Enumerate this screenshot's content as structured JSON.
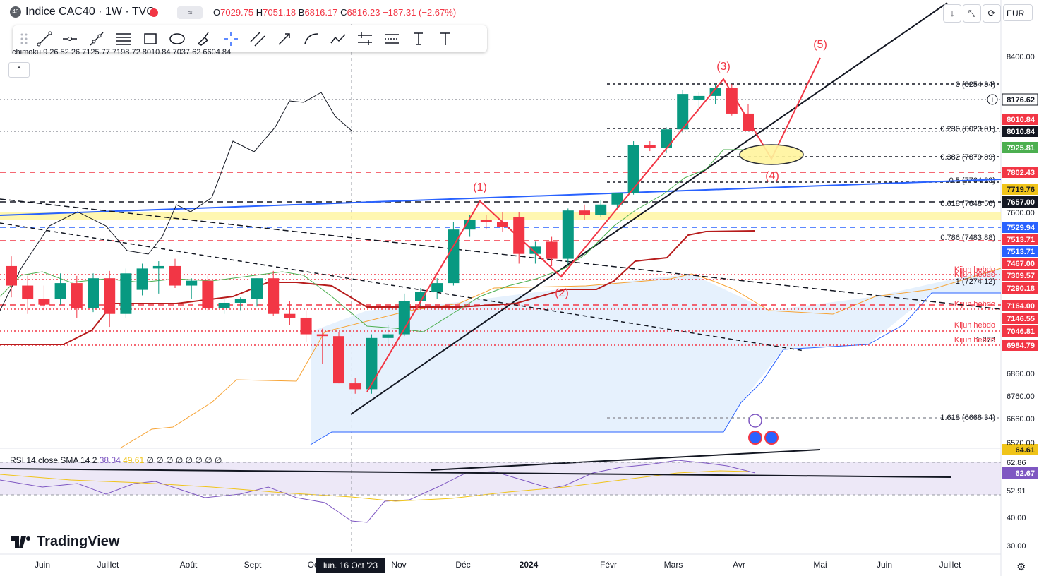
{
  "header": {
    "badge": "40",
    "symbol_title": "Indice CAC40 · 1W · TVC",
    "compare_icon": "≈",
    "ohlc": {
      "open_label": "O",
      "open": "7029.75",
      "high_label": "H",
      "high": "7051.18",
      "low_label": "B",
      "low": "6816.17",
      "close_label": "C",
      "close": "6816.23",
      "change": "−187.31 (−2.67%)"
    },
    "buttons": [
      "↓",
      "⤡",
      "⟳"
    ],
    "currency": "EUR"
  },
  "indicator_legend": "Ichimoku 9 26 52 26 7125.77 7198.72 8010.84 7037.62 6604.84",
  "rsi_legend": {
    "name": "RSI 14 close SMA 14 2",
    "v1": "38.34",
    "v2": "49.61",
    "rest": "∅ ∅ ∅ ∅ ∅ ∅ ∅ ∅"
  },
  "brand": "TradingView",
  "date_badge": "lun. 16 Oct '23",
  "colors": {
    "up": "#089981",
    "down": "#f23645",
    "wave": "#f23645",
    "trend_blue": "#2962ff",
    "kijun": "#b71c1c",
    "tenkan": "#4caf50",
    "cloud_fill": "#e3effd",
    "senkou_b": "#f7a334",
    "rsi_line": "#7e57c2",
    "rsi_sma": "#f0c419"
  },
  "chart_data": {
    "type": "candlestick",
    "symbol": "Indice CAC40",
    "timeframe": "1W",
    "x_tick_labels": [
      "Juin",
      "Juillet",
      "Août",
      "Sept",
      "Oct",
      "Nov",
      "Déc",
      "2024",
      "Févr",
      "Mars",
      "Avr",
      "Mai",
      "Juin",
      "Juillet"
    ],
    "y_tick_labels": [
      "8400.00",
      "7600.00",
      "6860.00",
      "6760.00",
      "6660.00",
      "6570.00"
    ],
    "candles": [
      {
        "o": 7380,
        "h": 7420,
        "l": 7240,
        "c": 7300
      },
      {
        "o": 7300,
        "h": 7340,
        "l": 7150,
        "c": 7230
      },
      {
        "o": 7230,
        "h": 7300,
        "l": 7170,
        "c": 7200
      },
      {
        "o": 7230,
        "h": 7350,
        "l": 7200,
        "c": 7310
      },
      {
        "o": 7310,
        "h": 7340,
        "l": 7130,
        "c": 7180
      },
      {
        "o": 7180,
        "h": 7350,
        "l": 7160,
        "c": 7330
      },
      {
        "o": 7330,
        "h": 7360,
        "l": 7080,
        "c": 7150
      },
      {
        "o": 7150,
        "h": 7370,
        "l": 7130,
        "c": 7350
      },
      {
        "o": 7280,
        "h": 7390,
        "l": 7250,
        "c": 7370
      },
      {
        "o": 7370,
        "h": 7400,
        "l": 7260,
        "c": 7380
      },
      {
        "o": 7380,
        "h": 7410,
        "l": 7290,
        "c": 7300
      },
      {
        "o": 7300,
        "h": 7330,
        "l": 7230,
        "c": 7320
      },
      {
        "o": 7320,
        "h": 7340,
        "l": 7170,
        "c": 7180
      },
      {
        "o": 7180,
        "h": 7230,
        "l": 7150,
        "c": 7210
      },
      {
        "o": 7210,
        "h": 7240,
        "l": 7170,
        "c": 7230
      },
      {
        "o": 7230,
        "h": 7330,
        "l": 7190,
        "c": 7330
      },
      {
        "o": 7330,
        "h": 7360,
        "l": 7140,
        "c": 7150
      },
      {
        "o": 7150,
        "h": 7220,
        "l": 7090,
        "c": 7130
      },
      {
        "o": 7130,
        "h": 7170,
        "l": 7000,
        "c": 7040
      },
      {
        "o": 7040,
        "h": 7070,
        "l": 6900,
        "c": 7030
      },
      {
        "o": 7030,
        "h": 7050,
        "l": 6816,
        "c": 6816
      },
      {
        "o": 6816,
        "h": 6840,
        "l": 6770,
        "c": 6790
      },
      {
        "o": 6790,
        "h": 7040,
        "l": 6770,
        "c": 7020
      },
      {
        "o": 7020,
        "h": 7090,
        "l": 6980,
        "c": 7040
      },
      {
        "o": 7040,
        "h": 7260,
        "l": 7030,
        "c": 7220
      },
      {
        "o": 7220,
        "h": 7290,
        "l": 7190,
        "c": 7270
      },
      {
        "o": 7270,
        "h": 7330,
        "l": 7230,
        "c": 7310
      },
      {
        "o": 7310,
        "h": 7560,
        "l": 7300,
        "c": 7530
      },
      {
        "o": 7530,
        "h": 7590,
        "l": 7500,
        "c": 7570
      },
      {
        "o": 7570,
        "h": 7590,
        "l": 7530,
        "c": 7560
      },
      {
        "o": 7560,
        "h": 7600,
        "l": 7520,
        "c": 7540
      },
      {
        "o": 7580,
        "h": 7600,
        "l": 7390,
        "c": 7430
      },
      {
        "o": 7430,
        "h": 7480,
        "l": 7390,
        "c": 7460
      },
      {
        "o": 7480,
        "h": 7500,
        "l": 7380,
        "c": 7410
      },
      {
        "o": 7410,
        "h": 7620,
        "l": 7390,
        "c": 7610
      },
      {
        "o": 7610,
        "h": 7640,
        "l": 7570,
        "c": 7590
      },
      {
        "o": 7590,
        "h": 7660,
        "l": 7580,
        "c": 7640
      },
      {
        "o": 7640,
        "h": 7690,
        "l": 7620,
        "c": 7700
      },
      {
        "o": 7700,
        "h": 7960,
        "l": 7690,
        "c": 7940
      },
      {
        "o": 7940,
        "h": 7960,
        "l": 7910,
        "c": 7925
      },
      {
        "o": 7925,
        "h": 8030,
        "l": 7900,
        "c": 8020
      },
      {
        "o": 8020,
        "h": 8220,
        "l": 8000,
        "c": 8200
      },
      {
        "o": 8170,
        "h": 8210,
        "l": 8110,
        "c": 8190
      },
      {
        "o": 8190,
        "h": 8250,
        "l": 8150,
        "c": 8230
      },
      {
        "o": 8230,
        "h": 8250,
        "l": 8090,
        "c": 8100
      },
      {
        "o": 8100,
        "h": 8150,
        "l": 8010,
        "c": 8010
      }
    ],
    "price_labels": [
      {
        "value": "8176.62",
        "style": "white"
      },
      {
        "value": "8010.84",
        "style": "red"
      },
      {
        "value": "8010.84",
        "style": "black"
      },
      {
        "value": "7925.81",
        "style": "green"
      },
      {
        "value": "7802.43",
        "style": "red"
      },
      {
        "value": "7719.76",
        "style": "yellow"
      },
      {
        "value": "7657.00",
        "style": "black"
      },
      {
        "value": "7529.94",
        "style": "blue"
      },
      {
        "value": "7513.71",
        "style": "red"
      },
      {
        "value": "7513.71",
        "style": "blue"
      },
      {
        "value": "7467.00",
        "style": "red"
      },
      {
        "value": "7309.57",
        "style": "red"
      },
      {
        "value": "7290.18",
        "style": "red"
      },
      {
        "value": "7164.00",
        "style": "red"
      },
      {
        "value": "7146.55",
        "style": "red"
      },
      {
        "value": "7046.81",
        "style": "red"
      },
      {
        "value": "6984.79",
        "style": "red"
      },
      {
        "value": "64.61",
        "style": "yellow"
      },
      {
        "value": "62.67",
        "style": "purple"
      }
    ],
    "fib_levels": [
      {
        "label": "0 (8254.34)",
        "level": 8254.34
      },
      {
        "label": "0.236 (8023.01)",
        "level": 8023.01
      },
      {
        "label": "0.382 (7879.89)",
        "level": 7879.89
      },
      {
        "label": "0.5 (7764.23)",
        "level": 7764.23
      },
      {
        "label": "0.618 (7648.56)",
        "level": 7648.56
      },
      {
        "label": "0.786 (7483.88)",
        "level": 7483.88
      },
      {
        "label": "1 (7274.12)",
        "level": 7274.12
      },
      {
        "label": "1.272",
        "level": 6990
      },
      {
        "label": "1.618 (6668.34)",
        "level": 6668.34
      }
    ],
    "kijun_labels": [
      "Kijun hebdo",
      "Kijun hebdo",
      "Kijun hebdo",
      "Kijun hebdo",
      "Kijun hebdo"
    ],
    "wave_labels": [
      "(1)",
      "(2)",
      "(3)",
      "(4)",
      "(5)"
    ],
    "rsi_axis_labels": [
      "62.86",
      "52.91",
      "40.00",
      "30.00"
    ],
    "rsi": {
      "length": 14,
      "last": 38.34,
      "sma": 49.61
    }
  }
}
